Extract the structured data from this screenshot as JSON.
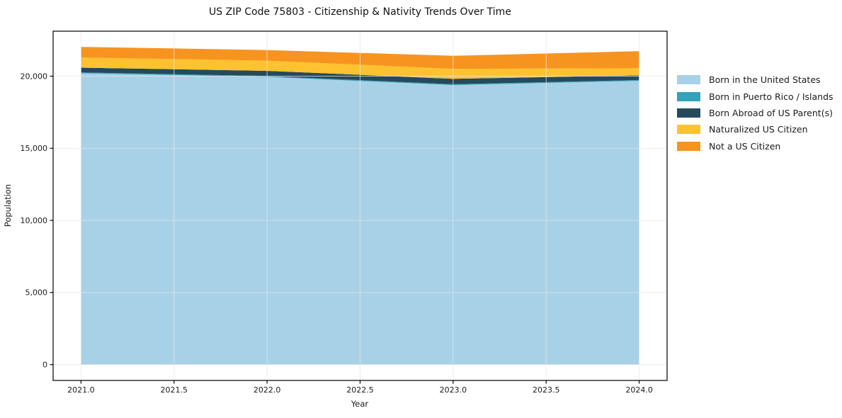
{
  "figure": {
    "background": "#ffffff"
  },
  "chart_data": {
    "type": "area",
    "stacked": true,
    "title": "US ZIP Code 75803 - Citizenship & Nativity Trends Over Time",
    "xlabel": "Year",
    "ylabel": "Population",
    "x": [
      2021,
      2022,
      2023,
      2024
    ],
    "series": [
      {
        "name": "Born in the United States",
        "color": "#a7d1e7",
        "values": [
          20200,
          19950,
          19380,
          19675
        ]
      },
      {
        "name": "Born in Puerto Rico / Islands",
        "color": "#34a2b8",
        "values": [
          60,
          60,
          60,
          60
        ]
      },
      {
        "name": "Born Abroad of US Parent(s)",
        "color": "#254a5c",
        "values": [
          330,
          360,
          375,
          325
        ]
      },
      {
        "name": "Naturalized US Citizen",
        "color": "#fdc22f",
        "values": [
          700,
          705,
          690,
          490
        ]
      },
      {
        "name": "Not a US Citizen",
        "color": "#f7941f",
        "values": [
          740,
          740,
          905,
          1185
        ]
      }
    ],
    "totals": [
      22030,
      21815,
      21410,
      21735
    ],
    "xticks": {
      "values": [
        2021.0,
        2021.5,
        2022.0,
        2022.5,
        2023.0,
        2023.5,
        2024.0
      ],
      "labels": [
        "2021.0",
        "2021.5",
        "2022.0",
        "2022.5",
        "2023.0",
        "2023.5",
        "2024.0"
      ]
    },
    "yticks": {
      "values": [
        0,
        5000,
        10000,
        15000,
        20000
      ],
      "labels": [
        "0",
        "5,000",
        "10,000",
        "15,000",
        "20,000"
      ]
    },
    "xlim": [
      2020.85,
      2024.15
    ],
    "ylim": [
      -1100,
      23120
    ],
    "grid": true,
    "legend_position": "right-outside"
  },
  "colors": {
    "grid": "#e6e6e6",
    "spine": "#000000",
    "tick_text": "#1a1a1a"
  }
}
